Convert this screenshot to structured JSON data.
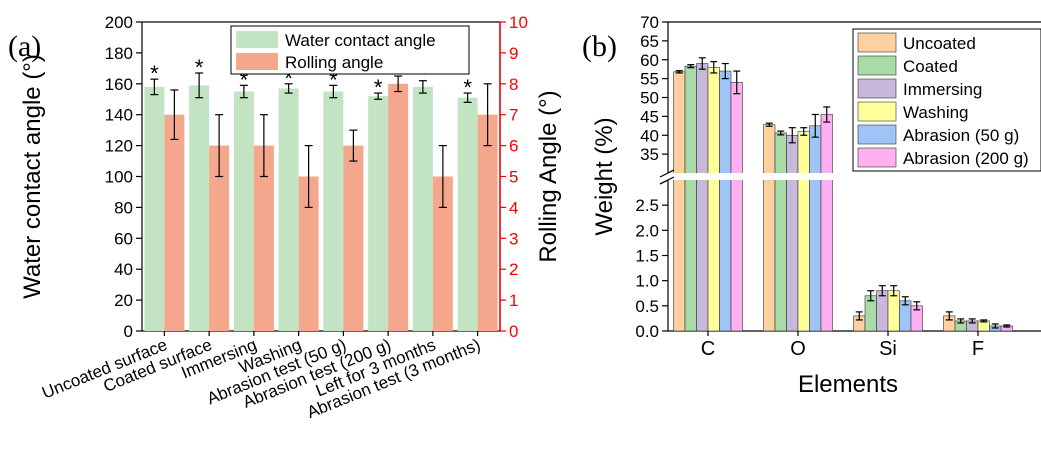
{
  "chart_data": [
    {
      "type": "bar",
      "panel_label": "(a)",
      "categories": [
        "Uncoated surface",
        "Coated surface",
        "Immersing",
        "Washing",
        "Abrasion test (50 g)",
        "Abrasion test (200 g)",
        "Left for 3 months",
        "Abrasion test (3 months)"
      ],
      "series": [
        {
          "name": "Water contact angle",
          "axis": "left",
          "color": "#c3e4c3",
          "values": [
            158,
            159,
            155,
            157,
            155,
            152,
            158,
            151
          ],
          "errors": [
            5,
            8,
            4,
            3,
            4,
            2,
            4,
            3
          ]
        },
        {
          "name": "Rolling angle",
          "axis": "right",
          "color": "#f4a78c",
          "values": [
            7,
            6,
            6,
            5,
            6,
            8,
            5,
            7
          ],
          "errors": [
            0.8,
            1,
            1,
            1,
            0.5,
            0.25,
            1,
            1
          ]
        }
      ],
      "annotation": "*",
      "ylabel": "Water contact angle (°)",
      "y2label": "Rolling Angle (°)",
      "ylim": [
        0,
        200
      ],
      "y2lim": [
        0,
        10
      ],
      "yticks": [
        0,
        20,
        40,
        60,
        80,
        100,
        120,
        140,
        160,
        180,
        200
      ],
      "y2ticks": [
        0,
        1,
        2,
        3,
        4,
        5,
        6,
        7,
        8,
        9,
        10
      ],
      "y2_color": "#ff0000",
      "legend_position": "top-right"
    },
    {
      "type": "bar",
      "panel_label": "(b)",
      "categories": [
        "C",
        "O",
        "Si",
        "F"
      ],
      "series": [
        {
          "name": "Uncoated",
          "color": "#ffd0a0",
          "values": [
            56.8,
            42.8,
            0.3,
            0.3
          ],
          "errors": [
            0.3,
            0.4,
            0.08,
            0.08
          ]
        },
        {
          "name": "Coated",
          "color": "#a8dba8",
          "values": [
            58.3,
            40.6,
            0.7,
            0.2
          ],
          "errors": [
            0.4,
            0.5,
            0.1,
            0.04
          ]
        },
        {
          "name": "Immersing",
          "color": "#c8b8dc",
          "values": [
            59,
            40,
            0.8,
            0.2
          ],
          "errors": [
            1.5,
            2,
            0.1,
            0.04
          ]
        },
        {
          "name": "Washing",
          "color": "#ffff99",
          "values": [
            58,
            41,
            0.8,
            0.2
          ],
          "errors": [
            1.5,
            1,
            0.1,
            0.02
          ]
        },
        {
          "name": "Abrasion (50 g)",
          "color": "#9fc5f8",
          "values": [
            57,
            42.5,
            0.6,
            0.1
          ],
          "errors": [
            2,
            3,
            0.08,
            0.04
          ]
        },
        {
          "name": "Abrasion (200 g)",
          "color": "#ffb0f0",
          "values": [
            54,
            45.5,
            0.5,
            0.1
          ],
          "errors": [
            3,
            2,
            0.08,
            0.02
          ]
        }
      ],
      "xlabel": "Elements",
      "ylabel": "Weight (%)",
      "axis_break": true,
      "ylim_lower": [
        0,
        3
      ],
      "ylim_upper": [
        30,
        70
      ],
      "yticks_lower": [
        0.0,
        0.5,
        1.0,
        1.5,
        2.0,
        2.5
      ],
      "yticks_upper": [
        35,
        40,
        45,
        50,
        55,
        60,
        65,
        70
      ],
      "legend_position": "top-right"
    }
  ]
}
